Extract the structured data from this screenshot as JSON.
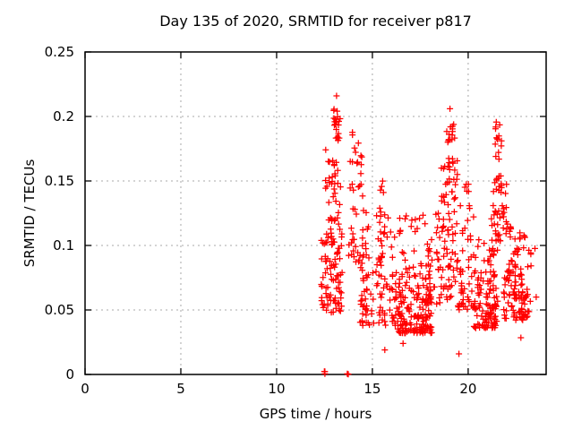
{
  "chart_data": {
    "type": "scatter",
    "title": "Day 135 of 2020, SRMTID for receiver p817",
    "xlabel": "GPS time / hours",
    "ylabel": "SRMTID / TECUs",
    "xlim": [
      0,
      24.07
    ],
    "ylim": [
      0,
      0.25
    ],
    "xticks": [
      {
        "v": 0,
        "label": "0"
      },
      {
        "v": 5,
        "label": "5"
      },
      {
        "v": 10,
        "label": "10"
      },
      {
        "v": 15,
        "label": "15"
      },
      {
        "v": 20,
        "label": "20"
      }
    ],
    "yticks": [
      {
        "v": 0,
        "label": "0"
      },
      {
        "v": 0.05,
        "label": "0.05"
      },
      {
        "v": 0.1,
        "label": "0.1"
      },
      {
        "v": 0.15,
        "label": "0.15"
      },
      {
        "v": 0.2,
        "label": "0.2"
      },
      {
        "v": 0.25,
        "label": "0.25"
      }
    ],
    "grid": true,
    "grid_style": "dotted",
    "legend": "none",
    "marker": "plus",
    "marker_color": "#ff0000",
    "marker_size_px": 7,
    "border_color": "#000000",
    "grid_color": "#a8a8a8",
    "text_color": "#000000",
    "seed": 135817,
    "n_points_estimate": 1000,
    "data_time_span_hours": [
      12.3,
      23.6
    ],
    "clusters": [
      {
        "n": 90,
        "x": [
          12.33,
          13.42
        ],
        "y": [
          0.048,
          0.115
        ],
        "mode": "u"
      },
      {
        "n": 38,
        "x": [
          12.55,
          13.35
        ],
        "y": [
          0.115,
          0.178
        ],
        "mode": "u"
      },
      {
        "n": 12,
        "x": [
          12.95,
          13.35
        ],
        "y": [
          0.193,
          0.206
        ],
        "mode": "u"
      },
      {
        "n": 9,
        "x": [
          13.0,
          13.4
        ],
        "y": [
          0.18,
          0.196
        ],
        "mode": "u"
      },
      {
        "n": 34,
        "x": [
          13.75,
          14.45
        ],
        "y": [
          0.085,
          0.18
        ],
        "mode": "u"
      },
      {
        "n": 3,
        "x": [
          13.9,
          14.1
        ],
        "y": [
          0.183,
          0.192
        ],
        "mode": "u"
      },
      {
        "n": 8,
        "x": [
          14.45,
          14.75
        ],
        "y": [
          0.09,
          0.14
        ],
        "mode": "u"
      },
      {
        "n": 14,
        "x": [
          15.3,
          15.7
        ],
        "y": [
          0.095,
          0.15
        ],
        "mode": "u"
      },
      {
        "n": 85,
        "x": [
          14.3,
          16.3
        ],
        "y": [
          0.038,
          0.09
        ],
        "mode": "lo"
      },
      {
        "n": 22,
        "x": [
          14.35,
          16.25
        ],
        "y": [
          0.09,
          0.125
        ],
        "mode": "lo"
      },
      {
        "n": 160,
        "x": [
          16.3,
          18.1
        ],
        "y": [
          0.032,
          0.08
        ],
        "mode": "lo"
      },
      {
        "n": 30,
        "x": [
          16.35,
          18.1
        ],
        "y": [
          0.08,
          0.124
        ],
        "mode": "lo"
      },
      {
        "n": 26,
        "x": [
          17.9,
          18.55
        ],
        "y": [
          0.05,
          0.128
        ],
        "mode": "u"
      },
      {
        "n": 26,
        "x": [
          18.55,
          19.45
        ],
        "y": [
          0.058,
          0.09
        ],
        "mode": "u"
      },
      {
        "n": 55,
        "x": [
          18.6,
          19.45
        ],
        "y": [
          0.09,
          0.168
        ],
        "mode": "u"
      },
      {
        "n": 14,
        "x": [
          18.85,
          19.3
        ],
        "y": [
          0.18,
          0.194
        ],
        "mode": "u"
      },
      {
        "n": 45,
        "x": [
          19.45,
          20.3
        ],
        "y": [
          0.05,
          0.125
        ],
        "mode": "lo"
      },
      {
        "n": 8,
        "x": [
          19.5,
          20.15
        ],
        "y": [
          0.125,
          0.152
        ],
        "mode": "u"
      },
      {
        "n": 105,
        "x": [
          20.3,
          21.55
        ],
        "y": [
          0.036,
          0.082
        ],
        "mode": "lo"
      },
      {
        "n": 16,
        "x": [
          20.35,
          21.5
        ],
        "y": [
          0.082,
          0.105
        ],
        "mode": "u"
      },
      {
        "n": 30,
        "x": [
          21.2,
          22.3
        ],
        "y": [
          0.095,
          0.125
        ],
        "mode": "u"
      },
      {
        "n": 18,
        "x": [
          21.3,
          22.0
        ],
        "y": [
          0.125,
          0.148
        ],
        "mode": "u"
      },
      {
        "n": 20,
        "x": [
          21.38,
          21.75
        ],
        "y": [
          0.148,
          0.196
        ],
        "mode": "u"
      },
      {
        "n": 100,
        "x": [
          21.85,
          23.15
        ],
        "y": [
          0.042,
          0.095
        ],
        "mode": "lo"
      },
      {
        "n": 12,
        "x": [
          22.4,
          23.05
        ],
        "y": [
          0.095,
          0.11
        ],
        "mode": "u"
      },
      {
        "n": 8,
        "x": [
          23.05,
          23.5
        ],
        "y": [
          0.048,
          0.1
        ],
        "mode": "u"
      },
      {
        "n": 4,
        "x": [
          12.49,
          12.53
        ],
        "y": [
          0.0,
          0.003
        ],
        "mode": "u"
      },
      {
        "n": 2,
        "x": [
          13.68,
          13.78
        ],
        "y": [
          0.0,
          0.002
        ],
        "mode": "u"
      }
    ],
    "singles": [
      [
        13.13,
        0.216
      ],
      [
        19.05,
        0.206
      ],
      [
        22.75,
        0.0285
      ],
      [
        19.52,
        0.016
      ],
      [
        15.65,
        0.019
      ],
      [
        16.6,
        0.024
      ],
      [
        23.55,
        0.06
      ]
    ]
  }
}
